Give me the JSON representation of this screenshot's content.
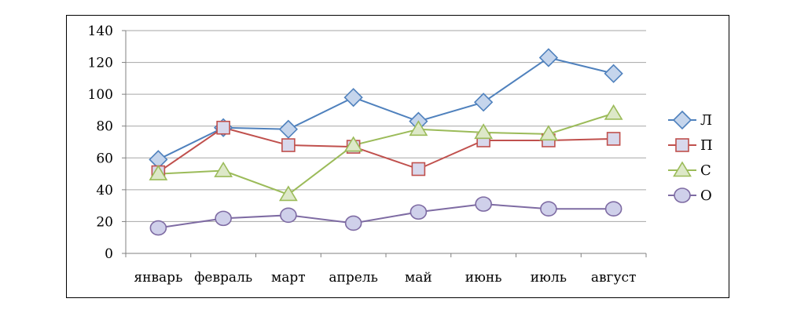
{
  "chart_data": {
    "type": "line",
    "title": "",
    "xlabel": "",
    "ylabel": "",
    "categories": [
      "январь",
      "февраль",
      "март",
      "апрель",
      "май",
      "июнь",
      "июль",
      "август"
    ],
    "ylim": [
      0,
      140
    ],
    "yticks": [
      0,
      20,
      40,
      60,
      80,
      100,
      120,
      140
    ],
    "grid": true,
    "legend_position": "right",
    "series": [
      {
        "name": "Л",
        "marker": "diamond",
        "color": "#4f81bd",
        "fill": "#c5d5ec",
        "values": [
          59,
          79,
          78,
          98,
          83,
          95,
          123,
          113
        ]
      },
      {
        "name": "П",
        "marker": "square",
        "color": "#c0504d",
        "fill": "#d8d8ec",
        "values": [
          51,
          79,
          68,
          67,
          53,
          71,
          71,
          72
        ]
      },
      {
        "name": "С",
        "marker": "triangle",
        "color": "#9bbb59",
        "fill": "#dde8c8",
        "values": [
          50,
          52,
          37,
          68,
          78,
          76,
          75,
          88
        ]
      },
      {
        "name": "О",
        "marker": "circle",
        "color": "#7e6ba3",
        "fill": "#cfd0ea",
        "values": [
          16,
          22,
          24,
          19,
          26,
          31,
          28,
          28
        ]
      }
    ]
  }
}
